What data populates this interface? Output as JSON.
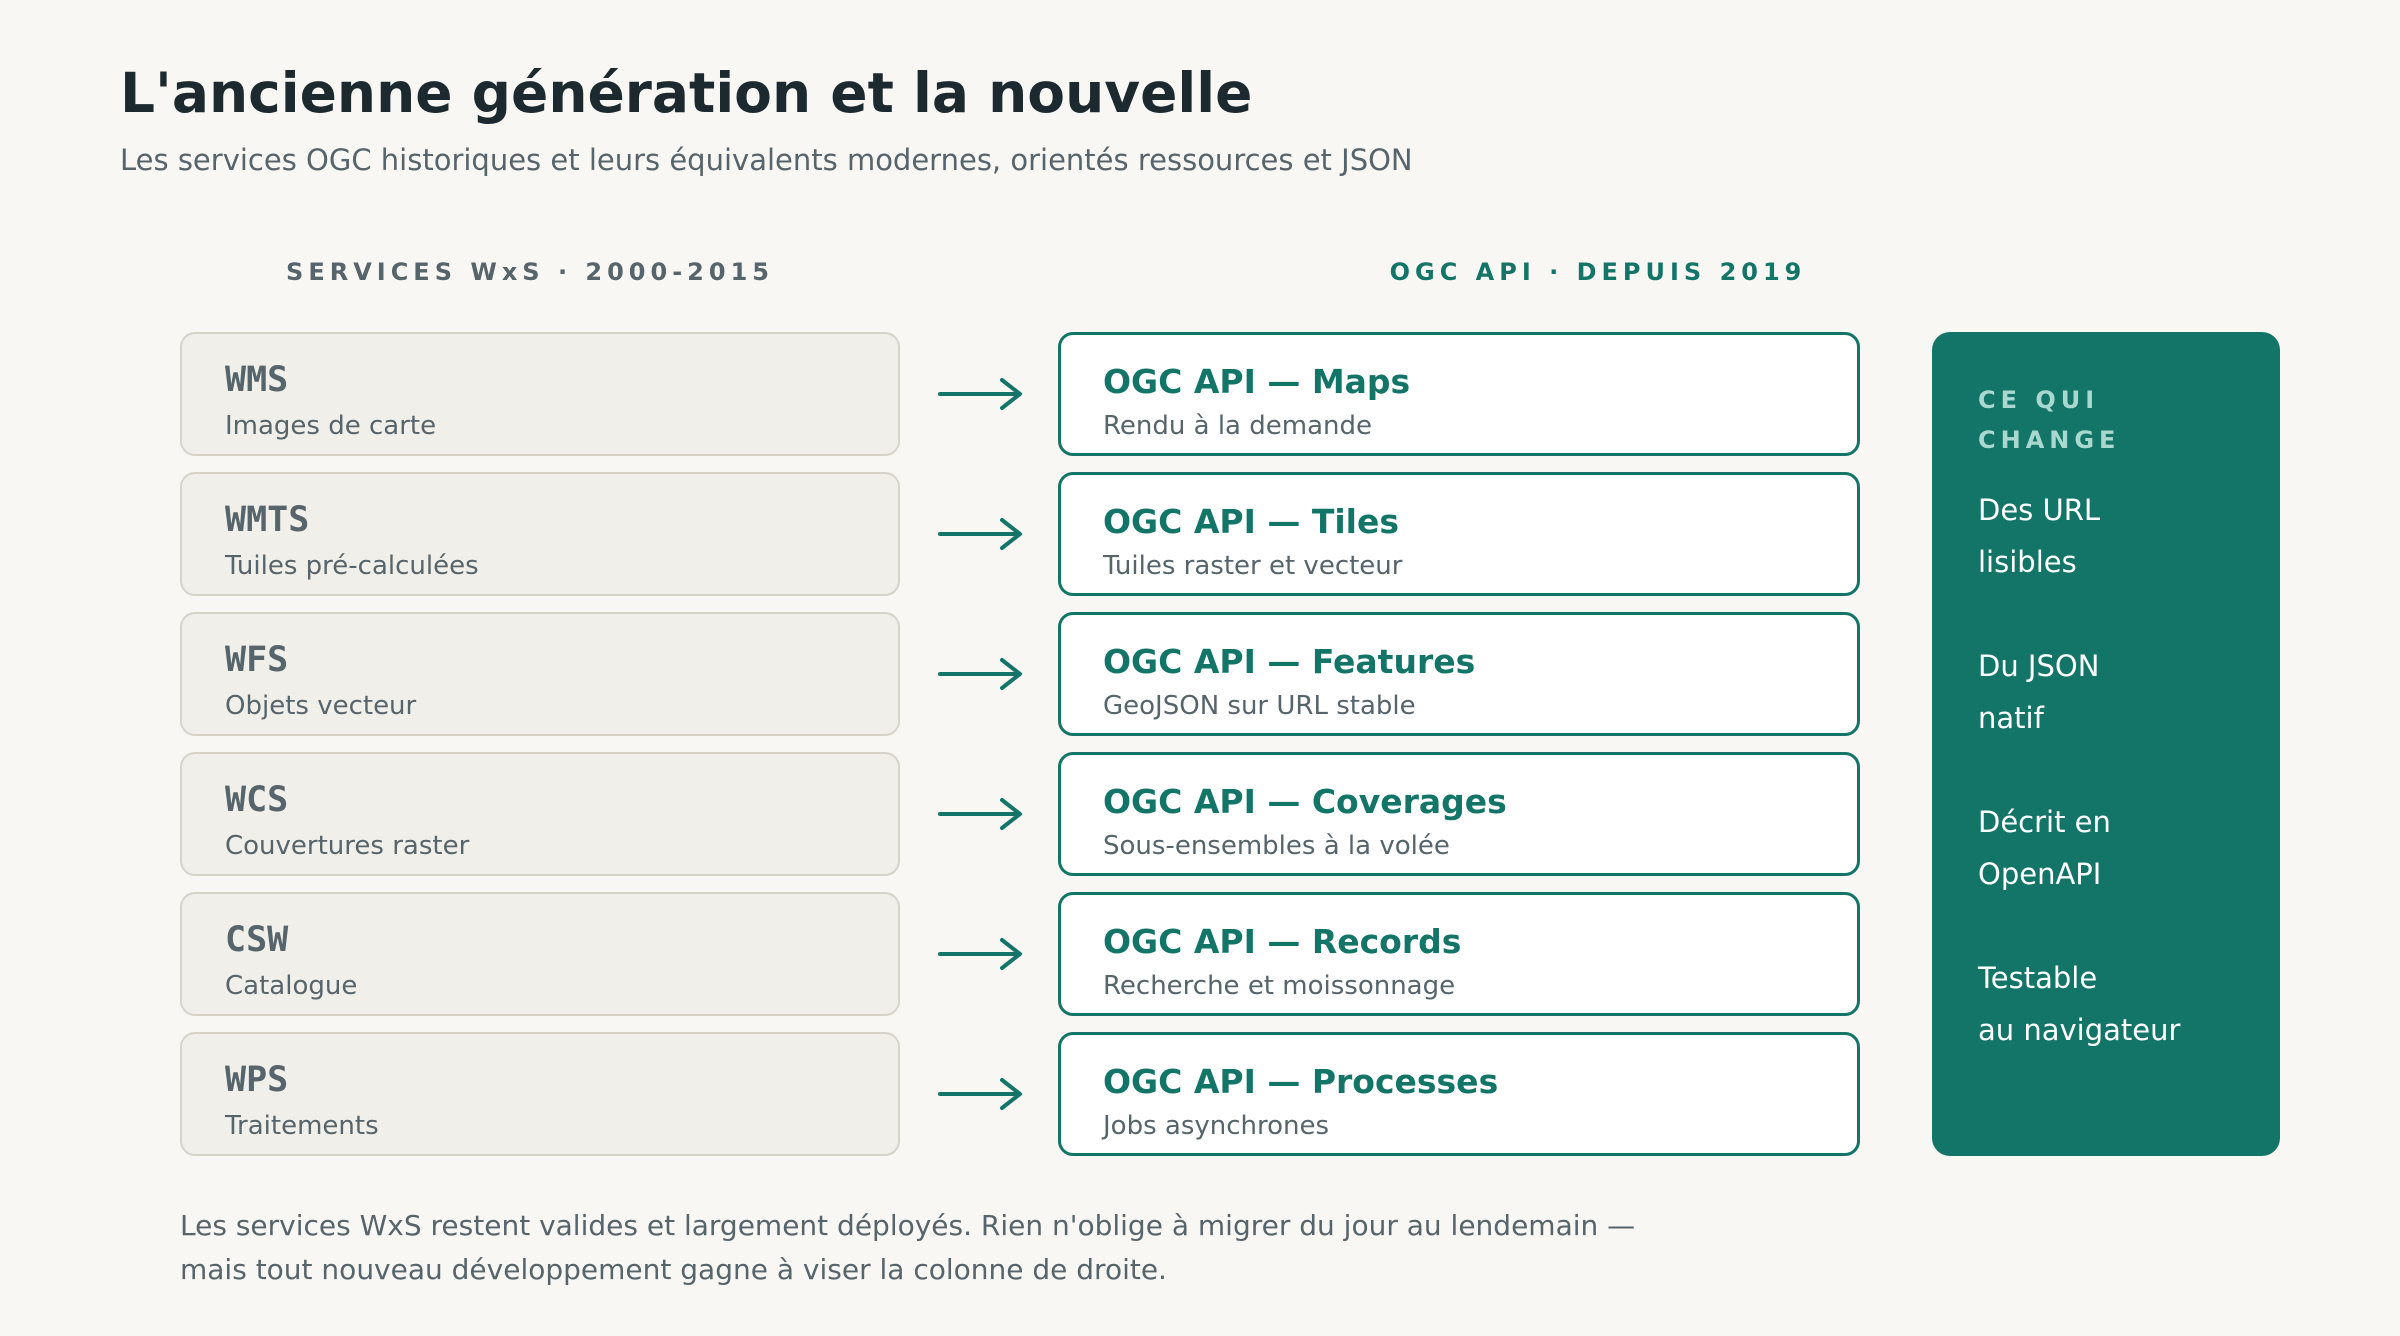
{
  "header": {
    "title": "L'ancienne génération et la nouvelle",
    "subtitle": "Les services OGC historiques et leurs équivalents modernes, orientés ressources et JSON"
  },
  "columns": {
    "legacy_header": "SERVICES WxS · 2000-2015",
    "modern_header": "OGC API · DEPUIS 2019"
  },
  "rows": [
    {
      "legacy_name": "WMS",
      "legacy_desc": "Images de carte",
      "modern_name": "OGC API — Maps",
      "modern_desc": "Rendu à la demande"
    },
    {
      "legacy_name": "WMTS",
      "legacy_desc": "Tuiles pré-calculées",
      "modern_name": "OGC API — Tiles",
      "modern_desc": "Tuiles raster et vecteur"
    },
    {
      "legacy_name": "WFS",
      "legacy_desc": "Objets vecteur",
      "modern_name": "OGC API — Features",
      "modern_desc": "GeoJSON sur URL stable"
    },
    {
      "legacy_name": "WCS",
      "legacy_desc": "Couvertures raster",
      "modern_name": "OGC API — Coverages",
      "modern_desc": "Sous-ensembles à la volée"
    },
    {
      "legacy_name": "CSW",
      "legacy_desc": "Catalogue",
      "modern_name": "OGC API — Records",
      "modern_desc": "Recherche et moissonnage"
    },
    {
      "legacy_name": "WPS",
      "legacy_desc": "Traitements",
      "modern_name": "OGC API — Processes",
      "modern_desc": "Jobs asynchrones"
    }
  ],
  "side_panel": {
    "title": "CE QUI CHANGE",
    "items": [
      "Des URL\nlisibles",
      "Du JSON\nnatif",
      "Décrit en\nOpenAPI",
      "Testable\nau navigateur"
    ]
  },
  "footer": {
    "note": "Les services WxS restent valides et largement déployés. Rien n'oblige à migrer du jour au lendemain —\nmais tout nouveau développement gagne à viser la colonne de droite."
  },
  "colors": {
    "background": "#f8f7f3",
    "accent": "#137568",
    "legacy_card": "#f1efe9",
    "muted_text": "#56646b",
    "title_text": "#1c2a30"
  },
  "icons": {
    "arrow": "arrow-right-icon"
  }
}
